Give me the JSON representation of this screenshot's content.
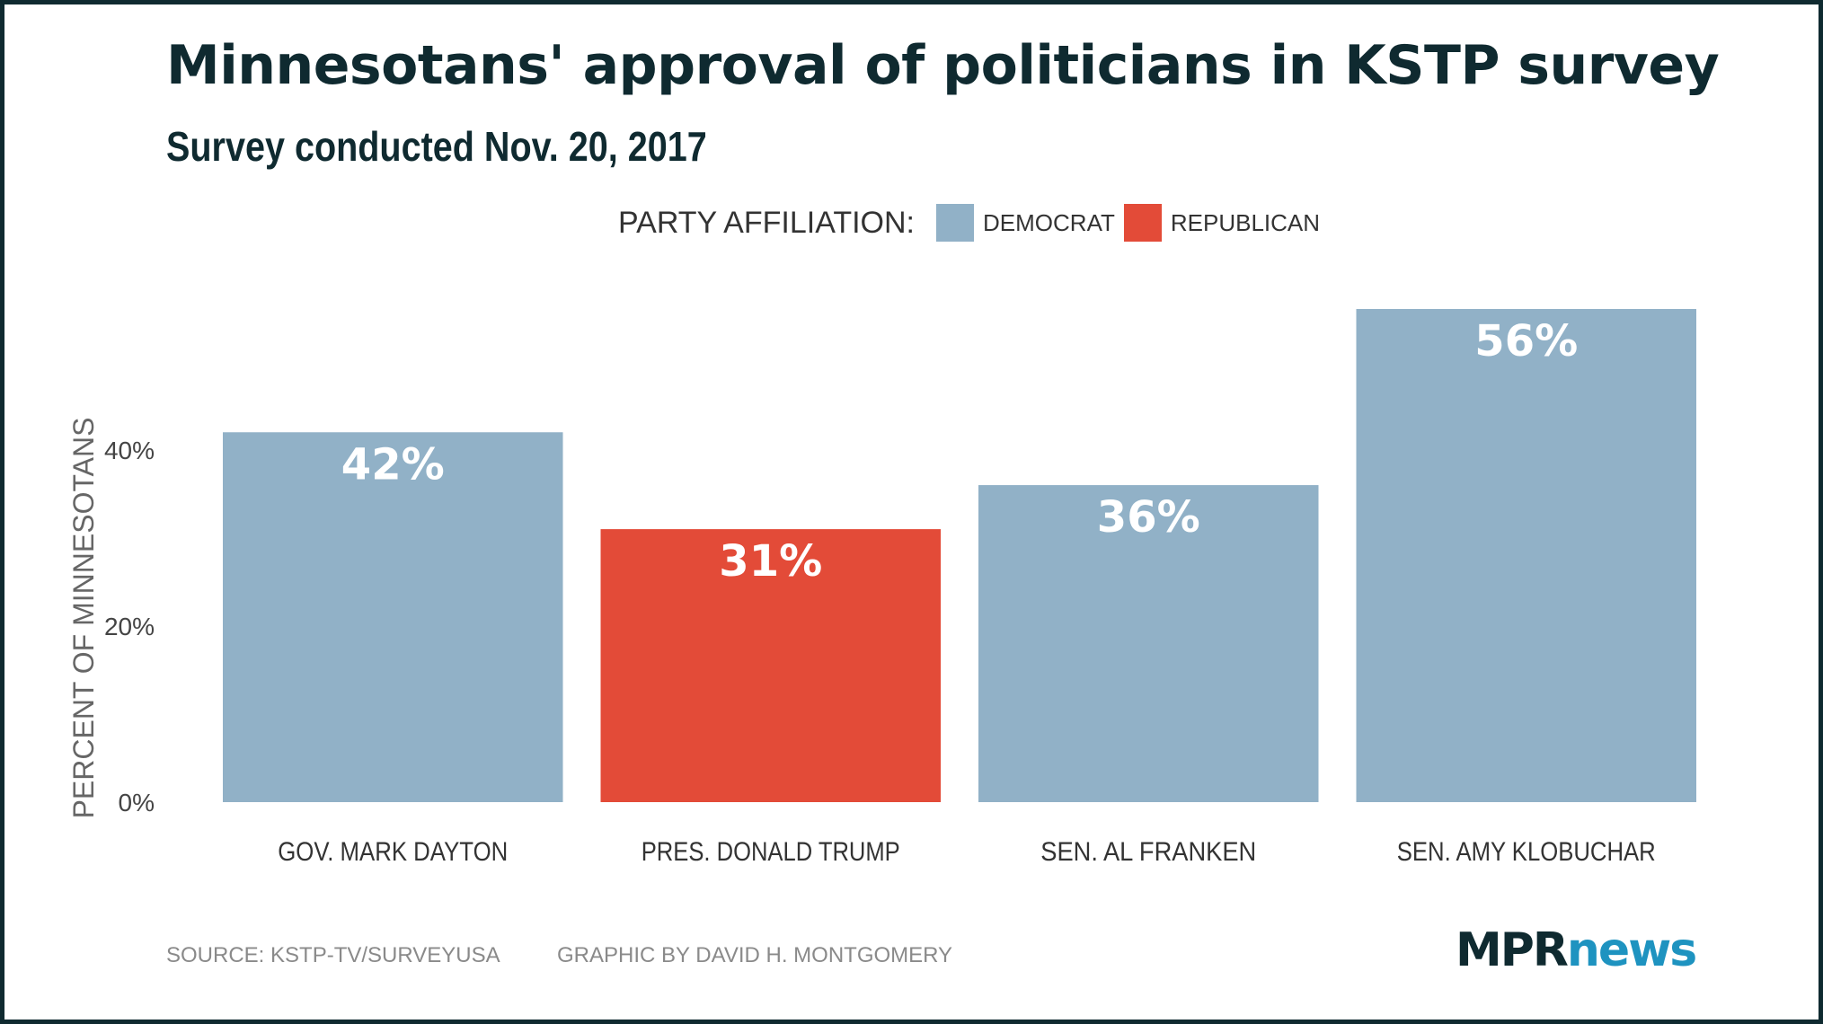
{
  "colors": {
    "democrat": "#91b1c7",
    "republican": "#e34b38",
    "text": "#333333",
    "dark": "#0f2a30"
  },
  "chart_data": {
    "type": "bar",
    "title": "Minnesotans' approval of politicians in KSTP survey",
    "subtitle": "Survey conducted Nov. 20, 2017",
    "ylabel": "PERCENT OF MINNESOTANS",
    "xlabel": "",
    "ylim": [
      0,
      56
    ],
    "yticks": [
      0,
      20,
      40
    ],
    "ytick_labels": [
      "0%",
      "20%",
      "40%"
    ],
    "grid": false,
    "legend": {
      "placement": "top-center",
      "title": "PARTY AFFILIATION:",
      "entries": [
        {
          "label": "DEMOCRAT",
          "party": "democrat"
        },
        {
          "label": "REPUBLICAN",
          "party": "republican"
        }
      ]
    },
    "categories": [
      "GOV. MARK DAYTON",
      "PRES. DONALD TRUMP",
      "SEN. AL FRANKEN",
      "SEN. AMY KLOBUCHAR"
    ],
    "values": [
      42,
      31,
      36,
      56
    ],
    "value_labels": [
      "42%",
      "31%",
      "36%",
      "56%"
    ],
    "party": [
      "democrat",
      "republican",
      "democrat",
      "democrat"
    ]
  },
  "footer": {
    "source": "SOURCE: KSTP-TV/SURVEYUSA",
    "credit": "GRAPHIC BY DAVID H. MONTGOMERY"
  },
  "logo": {
    "part1": "MPR",
    "part2": "news"
  }
}
